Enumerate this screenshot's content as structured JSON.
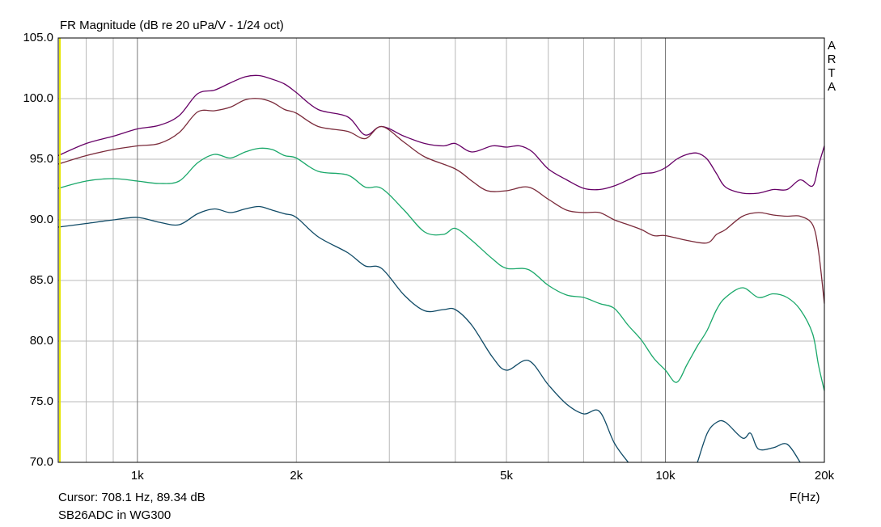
{
  "window": {
    "title": "FR Magnitude (dB re 20 uPa/V - 1/24 oct)",
    "brand_letters": [
      "A",
      "R",
      "T",
      "A"
    ],
    "cursor_text": "Cursor: 708.1 Hz, 89.34 dB",
    "caption": "SB26ADC in WG300",
    "x_unit_label": "F(Hz)"
  },
  "colors": {
    "grid": "#b8b8b8",
    "frame": "#000000",
    "cursor": "#e6e600",
    "series": [
      "#660066",
      "#7a2a3a",
      "#1aa86a",
      "#0f4a66"
    ]
  },
  "chart_data": {
    "type": "line",
    "title": "FR Magnitude (dB re 20 uPa/V - 1/24 oct)",
    "xlabel": "F(Hz)",
    "ylabel": "",
    "xscale": "log",
    "xlim": [
      708.1,
      20000
    ],
    "ylim": [
      70,
      105
    ],
    "grid": true,
    "legend": "none",
    "x_ticks": [
      {
        "value": 1000,
        "label": "1k"
      },
      {
        "value": 2000,
        "label": "2k"
      },
      {
        "value": 5000,
        "label": "5k"
      },
      {
        "value": 10000,
        "label": "10k"
      },
      {
        "value": 20000,
        "label": "20k"
      }
    ],
    "y_ticks": [
      {
        "value": 70,
        "label": "70.0"
      },
      {
        "value": 75,
        "label": "75.0"
      },
      {
        "value": 80,
        "label": "80.0"
      },
      {
        "value": 85,
        "label": "85.0"
      },
      {
        "value": 90,
        "label": "90.0"
      },
      {
        "value": 95,
        "label": "95.0"
      },
      {
        "value": 100,
        "label": "100.0"
      },
      {
        "value": 105,
        "label": "105.0"
      }
    ],
    "cursor": {
      "x": 708.1,
      "y": 89.34
    },
    "series": [
      {
        "color": "#660066",
        "points": [
          [
            708,
            95.3
          ],
          [
            800,
            96.3
          ],
          [
            900,
            96.9
          ],
          [
            1000,
            97.5
          ],
          [
            1100,
            97.8
          ],
          [
            1200,
            98.6
          ],
          [
            1300,
            100.4
          ],
          [
            1400,
            100.7
          ],
          [
            1500,
            101.3
          ],
          [
            1600,
            101.8
          ],
          [
            1700,
            101.9
          ],
          [
            1800,
            101.6
          ],
          [
            1900,
            101.2
          ],
          [
            2000,
            100.5
          ],
          [
            2200,
            99.1
          ],
          [
            2500,
            98.5
          ],
          [
            2700,
            97.0
          ],
          [
            2900,
            97.7
          ],
          [
            3200,
            96.9
          ],
          [
            3500,
            96.3
          ],
          [
            3800,
            96.1
          ],
          [
            4000,
            96.3
          ],
          [
            4300,
            95.6
          ],
          [
            4700,
            96.1
          ],
          [
            5000,
            96.0
          ],
          [
            5300,
            96.1
          ],
          [
            5600,
            95.6
          ],
          [
            6000,
            94.2
          ],
          [
            6500,
            93.3
          ],
          [
            7000,
            92.6
          ],
          [
            7500,
            92.5
          ],
          [
            8000,
            92.8
          ],
          [
            8500,
            93.3
          ],
          [
            9000,
            93.8
          ],
          [
            9500,
            93.9
          ],
          [
            10000,
            94.3
          ],
          [
            10500,
            95.0
          ],
          [
            11000,
            95.4
          ],
          [
            11500,
            95.5
          ],
          [
            12000,
            95.0
          ],
          [
            12500,
            93.8
          ],
          [
            13000,
            92.7
          ],
          [
            14000,
            92.2
          ],
          [
            15000,
            92.2
          ],
          [
            16000,
            92.5
          ],
          [
            17000,
            92.5
          ],
          [
            18000,
            93.3
          ],
          [
            19000,
            92.8
          ],
          [
            19500,
            94.5
          ],
          [
            20000,
            96.1
          ]
        ]
      },
      {
        "color": "#7a2a3a",
        "points": [
          [
            708,
            94.6
          ],
          [
            800,
            95.3
          ],
          [
            900,
            95.8
          ],
          [
            1000,
            96.1
          ],
          [
            1100,
            96.3
          ],
          [
            1200,
            97.2
          ],
          [
            1300,
            98.9
          ],
          [
            1400,
            99.0
          ],
          [
            1500,
            99.3
          ],
          [
            1600,
            99.9
          ],
          [
            1700,
            100.0
          ],
          [
            1800,
            99.7
          ],
          [
            1900,
            99.1
          ],
          [
            2000,
            98.8
          ],
          [
            2200,
            97.7
          ],
          [
            2500,
            97.3
          ],
          [
            2700,
            96.7
          ],
          [
            2900,
            97.7
          ],
          [
            3200,
            96.4
          ],
          [
            3500,
            95.2
          ],
          [
            4000,
            94.2
          ],
          [
            4300,
            93.2
          ],
          [
            4600,
            92.4
          ],
          [
            5000,
            92.4
          ],
          [
            5500,
            92.7
          ],
          [
            6000,
            91.7
          ],
          [
            6500,
            90.8
          ],
          [
            7000,
            90.6
          ],
          [
            7500,
            90.6
          ],
          [
            8000,
            90.0
          ],
          [
            8500,
            89.6
          ],
          [
            9000,
            89.2
          ],
          [
            9500,
            88.7
          ],
          [
            10000,
            88.7
          ],
          [
            11000,
            88.3
          ],
          [
            12000,
            88.1
          ],
          [
            12500,
            88.8
          ],
          [
            13000,
            89.2
          ],
          [
            14000,
            90.3
          ],
          [
            15000,
            90.6
          ],
          [
            16000,
            90.4
          ],
          [
            17000,
            90.3
          ],
          [
            18000,
            90.3
          ],
          [
            19000,
            89.6
          ],
          [
            19500,
            87.4
          ],
          [
            20000,
            83.1
          ]
        ]
      },
      {
        "color": "#1aa86a",
        "points": [
          [
            708,
            92.6
          ],
          [
            800,
            93.2
          ],
          [
            900,
            93.4
          ],
          [
            1000,
            93.2
          ],
          [
            1100,
            93.0
          ],
          [
            1200,
            93.2
          ],
          [
            1300,
            94.7
          ],
          [
            1400,
            95.4
          ],
          [
            1500,
            95.1
          ],
          [
            1600,
            95.6
          ],
          [
            1700,
            95.9
          ],
          [
            1800,
            95.8
          ],
          [
            1900,
            95.3
          ],
          [
            2000,
            95.1
          ],
          [
            2200,
            94.0
          ],
          [
            2500,
            93.7
          ],
          [
            2700,
            92.7
          ],
          [
            2900,
            92.6
          ],
          [
            3200,
            90.8
          ],
          [
            3500,
            89.0
          ],
          [
            3800,
            88.8
          ],
          [
            4000,
            89.3
          ],
          [
            4300,
            88.3
          ],
          [
            4700,
            86.8
          ],
          [
            5000,
            86.0
          ],
          [
            5500,
            85.9
          ],
          [
            6000,
            84.6
          ],
          [
            6500,
            83.8
          ],
          [
            7000,
            83.6
          ],
          [
            7500,
            83.1
          ],
          [
            8000,
            82.7
          ],
          [
            8500,
            81.3
          ],
          [
            9000,
            80.1
          ],
          [
            9500,
            78.6
          ],
          [
            10000,
            77.6
          ],
          [
            10500,
            76.6
          ],
          [
            11000,
            78.1
          ],
          [
            11500,
            79.6
          ],
          [
            12000,
            80.9
          ],
          [
            12500,
            82.6
          ],
          [
            13000,
            83.6
          ],
          [
            14000,
            84.4
          ],
          [
            15000,
            83.6
          ],
          [
            16000,
            83.9
          ],
          [
            17000,
            83.6
          ],
          [
            18000,
            82.6
          ],
          [
            19000,
            80.6
          ],
          [
            19500,
            78.0
          ],
          [
            20000,
            75.9
          ]
        ]
      },
      {
        "color": "#0f4a66",
        "points": [
          [
            708,
            89.4
          ],
          [
            800,
            89.7
          ],
          [
            900,
            90.0
          ],
          [
            1000,
            90.2
          ],
          [
            1100,
            89.8
          ],
          [
            1200,
            89.6
          ],
          [
            1300,
            90.5
          ],
          [
            1400,
            90.9
          ],
          [
            1500,
            90.6
          ],
          [
            1600,
            90.9
          ],
          [
            1700,
            91.1
          ],
          [
            1800,
            90.8
          ],
          [
            1900,
            90.5
          ],
          [
            2000,
            90.2
          ],
          [
            2200,
            88.6
          ],
          [
            2500,
            87.3
          ],
          [
            2700,
            86.2
          ],
          [
            2900,
            86.0
          ],
          [
            3200,
            83.8
          ],
          [
            3500,
            82.5
          ],
          [
            3800,
            82.6
          ],
          [
            4000,
            82.6
          ],
          [
            4300,
            81.3
          ],
          [
            4700,
            78.7
          ],
          [
            5000,
            77.6
          ],
          [
            5500,
            78.4
          ],
          [
            6000,
            76.4
          ],
          [
            6500,
            74.8
          ],
          [
            7000,
            74.0
          ],
          [
            7500,
            74.2
          ],
          [
            8000,
            71.6
          ],
          [
            8500,
            70.0
          ]
        ]
      },
      {
        "color": "#0f4a66",
        "points": [
          [
            11500,
            70.0
          ],
          [
            12000,
            72.4
          ],
          [
            12500,
            73.3
          ],
          [
            13000,
            73.3
          ],
          [
            14000,
            72.0
          ],
          [
            14500,
            72.4
          ],
          [
            15000,
            71.1
          ],
          [
            16000,
            71.2
          ],
          [
            17000,
            71.5
          ],
          [
            18000,
            70.0
          ]
        ]
      }
    ]
  }
}
